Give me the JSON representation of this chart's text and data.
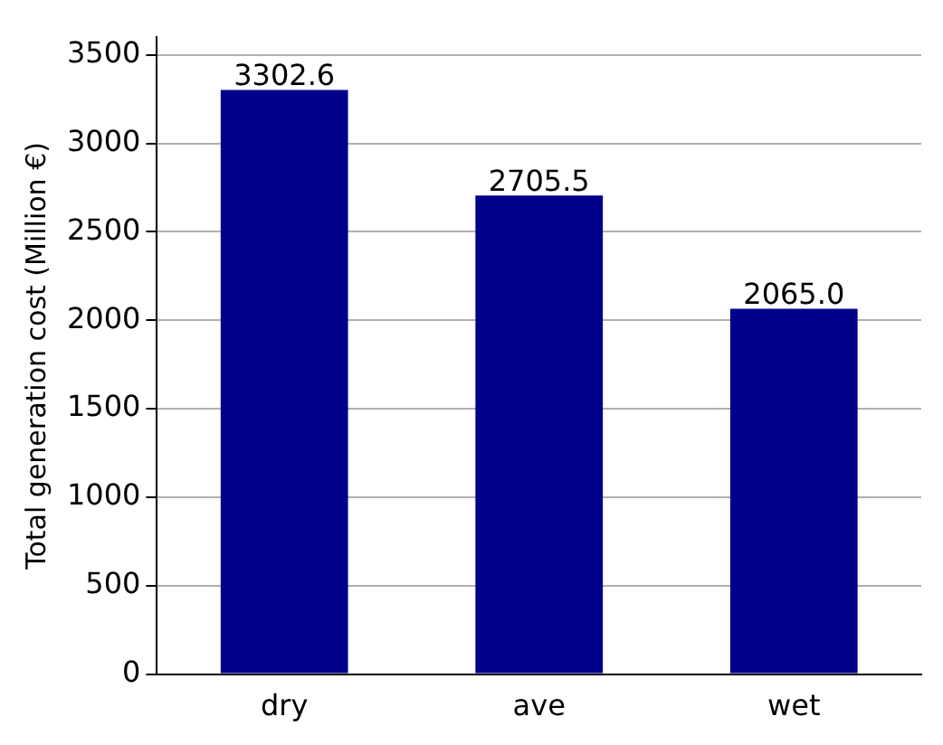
{
  "chart_data": {
    "type": "bar",
    "ylabel": "Total generation cost (Million €)",
    "categories": [
      "dry",
      "ave",
      "wet"
    ],
    "values": [
      3302.6,
      2705.5,
      2065.0
    ],
    "value_labels": [
      "3302.6",
      "2705.5",
      "2065.0"
    ],
    "color": "#00008b",
    "ylim": [
      0,
      3600
    ],
    "yticks": [
      0,
      500,
      1000,
      1500,
      2000,
      2500,
      3000,
      3500
    ],
    "grid": "y",
    "legend": false
  }
}
